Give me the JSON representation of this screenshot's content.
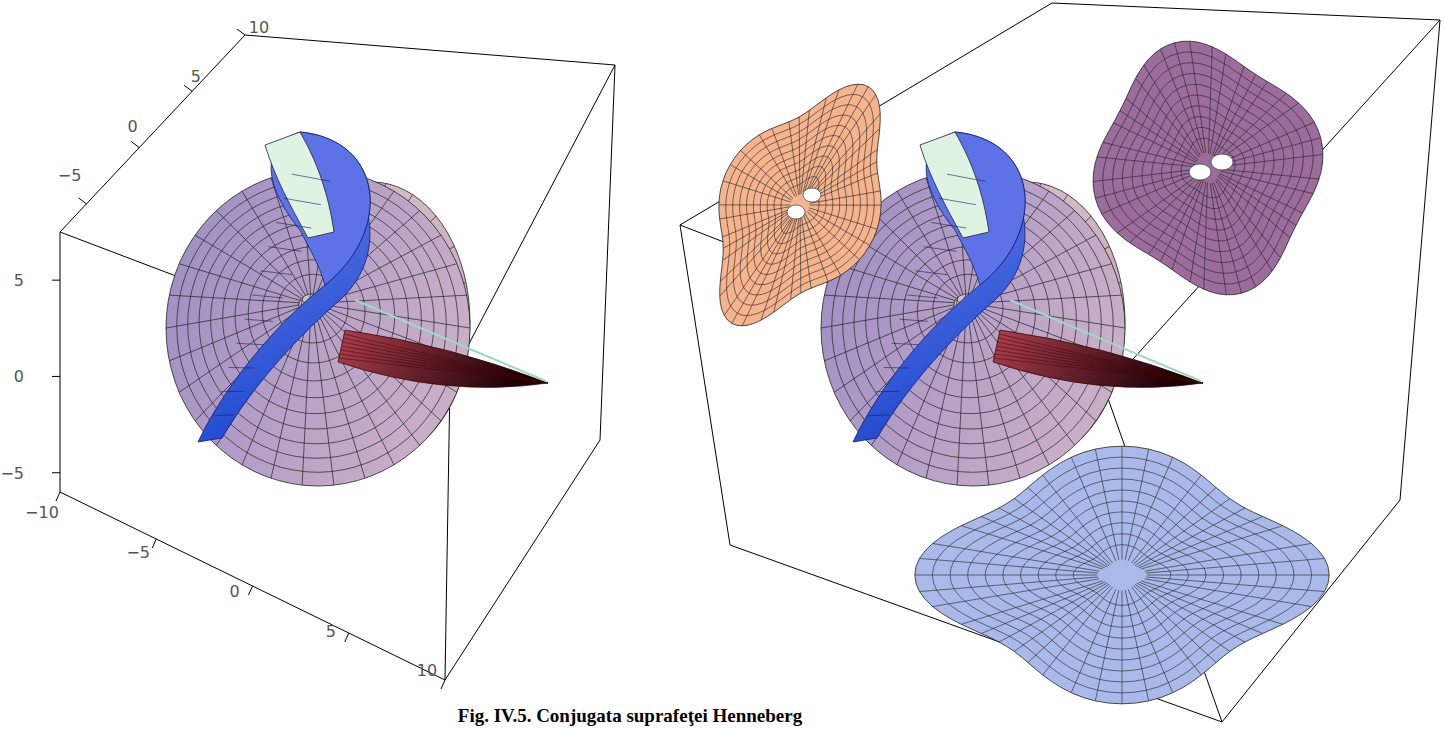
{
  "chart_data": {
    "type": "surface3d",
    "title": "Fig. IV.5. Conjugata suprafeţei Henneberg",
    "xlim": [
      -10,
      10
    ],
    "xticks": [
      {
        "value": -10,
        "label": "−10"
      },
      {
        "value": -5,
        "label": "−5"
      },
      0,
      5,
      10
    ],
    "ylim": [
      -7.5,
      10
    ],
    "yticks": [
      {
        "value": -5,
        "label": "−5"
      },
      0,
      5,
      10
    ],
    "zlim": [
      -6,
      7.5
    ],
    "zticks": [
      {
        "value": -5,
        "label": "−5"
      },
      0,
      5
    ]
  }
}
